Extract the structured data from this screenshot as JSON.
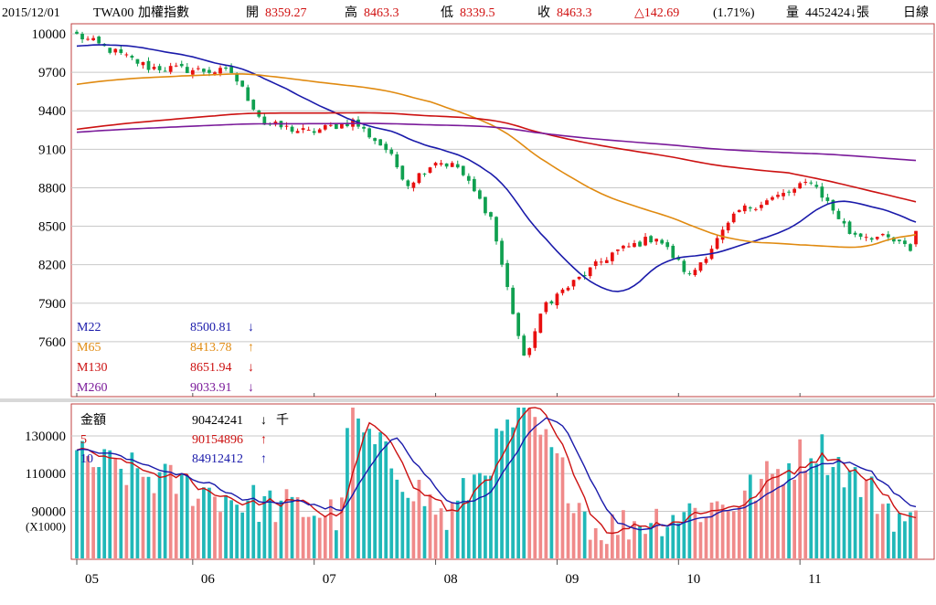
{
  "header": {
    "date": "2015/12/01",
    "symbol": "TWA00",
    "name": "加權指數",
    "open_label": "開",
    "open": "8359.27",
    "high_label": "高",
    "high": "8463.3",
    "low_label": "低",
    "low": "8339.5",
    "close_label": "收",
    "close": "8463.3",
    "change": "△142.69",
    "change_pct": "(1.71%)",
    "volume_label": "量",
    "volume": "4452424↓張",
    "period": "日線"
  },
  "price_legend": [
    {
      "name": "M22",
      "value": "8500.81",
      "arrow": "↓",
      "color": "#1a1aaa"
    },
    {
      "name": "M65",
      "value": "8413.78",
      "arrow": "↑",
      "color": "#e08a10"
    },
    {
      "name": "M130",
      "value": "8651.94",
      "arrow": "↓",
      "color": "#cc1111"
    },
    {
      "name": "M260",
      "value": "9033.91",
      "arrow": "↓",
      "color": "#7a1a9a"
    }
  ],
  "volume_legend": [
    {
      "name": "金額",
      "value": "90424241",
      "arrow": "↓",
      "unit": "千",
      "color": "#000000"
    },
    {
      "name": "5",
      "value": "90154896",
      "arrow": "↑",
      "unit": "",
      "color": "#cc1111"
    },
    {
      "name": "10",
      "value": "84912412",
      "arrow": "↑",
      "unit": "",
      "color": "#1a1aaa"
    }
  ],
  "price_axis": {
    "ticks": [
      10000,
      9700,
      9400,
      9100,
      8800,
      8500,
      8200,
      7900,
      7600
    ],
    "range": [
      7200,
      10050
    ]
  },
  "volume_axis": {
    "ticks": [
      130000,
      110000,
      90000
    ],
    "unit_label": "(X1000)",
    "range": [
      65000,
      145000
    ]
  },
  "months": [
    "05",
    "06",
    "07",
    "08",
    "09",
    "10",
    "11"
  ],
  "colors": {
    "up": "#e81010",
    "down": "#10a050",
    "vol_up": "#f08a8a",
    "vol_down": "#20b8b8",
    "border": "#c04040",
    "grid": "#c8c8c8"
  },
  "chart_data": {
    "type": "candlestick",
    "period": "daily",
    "x_range": [
      "2015-05-01",
      "2015-12-01"
    ],
    "price_anchors": [
      {
        "date": "2015-05-01",
        "close": 9990
      },
      {
        "date": "2015-05-20",
        "close": 9740
      },
      {
        "date": "2015-06-10",
        "close": 9700
      },
      {
        "date": "2015-06-18",
        "close": 9300
      },
      {
        "date": "2015-06-30",
        "close": 9230
      },
      {
        "date": "2015-07-10",
        "close": 9320
      },
      {
        "date": "2015-07-20",
        "close": 9100
      },
      {
        "date": "2015-07-24",
        "close": 8830
      },
      {
        "date": "2015-07-31",
        "close": 9010
      },
      {
        "date": "2015-08-06",
        "close": 8960
      },
      {
        "date": "2015-08-14",
        "close": 8570
      },
      {
        "date": "2015-08-24",
        "close": 7460
      },
      {
        "date": "2015-08-28",
        "close": 7900
      },
      {
        "date": "2015-09-04",
        "close": 8060
      },
      {
        "date": "2015-09-15",
        "close": 8290
      },
      {
        "date": "2015-09-25",
        "close": 8420
      },
      {
        "date": "2015-10-05",
        "close": 8110
      },
      {
        "date": "2015-10-16",
        "close": 8620
      },
      {
        "date": "2015-10-30",
        "close": 8780
      },
      {
        "date": "2015-11-04",
        "close": 8860
      },
      {
        "date": "2015-11-13",
        "close": 8450
      },
      {
        "date": "2015-11-24",
        "close": 8400
      },
      {
        "date": "2015-11-30",
        "close": 8320
      },
      {
        "date": "2015-12-01",
        "close": 8463.3
      }
    ],
    "last_bar": {
      "date": "2015-12-01",
      "open": 8359.27,
      "high": 8463.3,
      "low": 8339.5,
      "close": 8463.3
    },
    "moving_averages": {
      "M22": 8500.81,
      "M65": 8413.78,
      "M130": 8651.94,
      "M260": 9033.91
    },
    "volume_anchors": [
      {
        "date": "2015-05-01",
        "value": 118000
      },
      {
        "date": "2015-06-15",
        "value": 95000
      },
      {
        "date": "2015-07-08",
        "value": 88000
      },
      {
        "date": "2015-07-09",
        "value": 140000
      },
      {
        "date": "2015-08-04",
        "value": 85000
      },
      {
        "date": "2015-08-24",
        "value": 145000
      },
      {
        "date": "2015-09-10",
        "value": 80000
      },
      {
        "date": "2015-10-15",
        "value": 95000
      },
      {
        "date": "2015-11-05",
        "value": 125000
      },
      {
        "date": "2015-11-30",
        "value": 82000
      },
      {
        "date": "2015-12-01",
        "value": 90424
      }
    ],
    "volume_ma": {
      "5": 90154.9,
      "10": 84912.4
    }
  }
}
